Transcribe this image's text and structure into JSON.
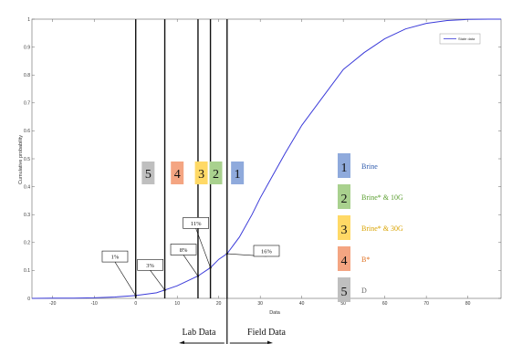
{
  "chart_data": {
    "type": "line",
    "xlabel": "Data",
    "ylabel": "Cumulative probability",
    "xlim": [
      -25,
      88
    ],
    "ylim": [
      0,
      1
    ],
    "x_ticks": [
      -20,
      -10,
      0,
      10,
      20,
      30,
      40,
      50,
      60,
      70,
      80
    ],
    "y_ticks": [
      0,
      0.1,
      0.2,
      0.3,
      0.4,
      0.5,
      0.6,
      0.7,
      0.8,
      0.9,
      1
    ],
    "legend_position": "top-right",
    "series": [
      {
        "name": "State data",
        "color": "#3b3bd9",
        "x": [
          -25,
          -20,
          -15,
          -10,
          -5,
          0,
          5,
          7,
          10,
          15,
          18,
          20,
          22,
          25,
          28,
          30,
          33,
          36,
          40,
          45,
          50,
          55,
          60,
          65,
          70,
          75,
          80,
          85,
          88
        ],
        "y": [
          0,
          0.0005,
          0.001,
          0.002,
          0.005,
          0.01,
          0.02,
          0.03,
          0.045,
          0.08,
          0.11,
          0.14,
          0.16,
          0.22,
          0.3,
          0.36,
          0.44,
          0.52,
          0.62,
          0.72,
          0.82,
          0.88,
          0.93,
          0.965,
          0.985,
          0.995,
          0.999,
          1,
          1
        ]
      }
    ],
    "markers": [
      {
        "label": "5",
        "x": 0,
        "box_x": 3,
        "color": "#bfbfbf"
      },
      {
        "label": "4",
        "x": 7,
        "box_x": 10,
        "color": "#f4a582"
      },
      {
        "label": "3",
        "x": 15,
        "box_x": 15.8,
        "color": "#ffd966"
      },
      {
        "label": "2",
        "x": 18,
        "box_x": 19.3,
        "color": "#a9d18e"
      },
      {
        "label": "1",
        "x": 22,
        "box_x": 24.5,
        "color": "#8faadc"
      }
    ],
    "annotations": [
      {
        "text": "1%",
        "x": 0,
        "y": 0.01,
        "box_x": -5,
        "box_y": 0.15
      },
      {
        "text": "3%",
        "x": 7,
        "y": 0.03,
        "box_x": 3.5,
        "box_y": 0.12
      },
      {
        "text": "8%",
        "x": 15,
        "y": 0.08,
        "box_x": 11.5,
        "box_y": 0.175
      },
      {
        "text": "11%",
        "x": 18,
        "y": 0.11,
        "box_x": 14.5,
        "box_y": 0.27
      },
      {
        "text": "16%",
        "x": 22,
        "y": 0.16,
        "box_x": 31.5,
        "box_y": 0.17
      }
    ],
    "legend_entries": [
      {
        "num": "1",
        "text": "Brine",
        "color": "#8faadc",
        "text_color": "#2e5aac"
      },
      {
        "num": "2",
        "text": "Brine* & 10G",
        "color": "#a9d18e",
        "text_color": "#5a9e2f"
      },
      {
        "num": "3",
        "text": "Brine* & 30G",
        "color": "#ffd966",
        "text_color": "#d9a300"
      },
      {
        "num": "4",
        "text": "B*",
        "color": "#f4a582",
        "text_color": "#e07020"
      },
      {
        "num": "5",
        "text": "D",
        "color": "#bfbfbf",
        "text_color": "#666666"
      }
    ],
    "divider_x": 22,
    "lab_label": "Lab Data",
    "field_label": "Field Data"
  }
}
